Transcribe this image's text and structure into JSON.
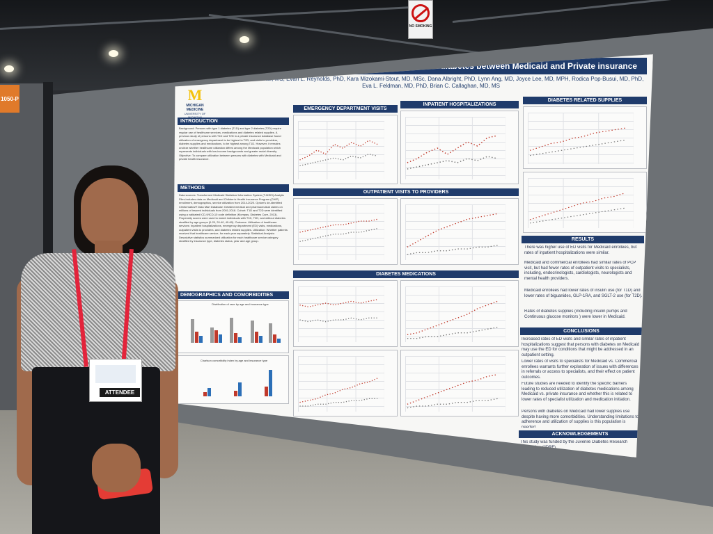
{
  "scene": {
    "sign_text": "NO SMOKING",
    "booth_number": "1050-P",
    "badge_text": "ATTENDEE"
  },
  "poster": {
    "title": "Comparing healthcare utilization among persons with diabetes between Medicaid and Private insurance",
    "authors": "Lavanya Muthukumar, MS, Evan L. Reynolds, PhD, Kara Mizokami-Stout, MD, MSc, Dana Albright, PhD, Lynn Ang, MD, Joyce Lee, MD, MPH, Rodica Pop-Busui, MD, PhD, Eva L. Feldman, MD, PhD, Brian C. Callaghan, MD, MS",
    "logo": {
      "letter": "M",
      "line1": "MICHIGAN MEDICINE",
      "line2": "UNIVERSITY OF MICHIGAN"
    },
    "sections": {
      "introduction": "INTRODUCTION",
      "methods": "METHODS",
      "demographics": "DEMOGRAPHICS AND COMORBIDITIES",
      "ed_visits": "EMERGENCY DEPARTMENT VISITS",
      "inpatient": "INPATIENT HOSPITALIZATIONS",
      "supplies": "DIABETES RELATED SUPPLIES",
      "outpatient": "OUTPATIENT VISITS TO PROVIDERS",
      "medications": "DIABETES MEDICATIONS",
      "results": "RESULTS",
      "conclusions": "CONCLUSIONS",
      "acknowledgements": "ACKNOWLEDGEMENTS"
    },
    "intro_text": "Background: Persons with type 1 diabetes (T1D) and type 2 diabetes (T2D) require regular use of healthcare services, medications and diabetes related supplies. A previous study of persons with T1D and T2D in a private insurance database found utilization of emergency department to be highest in T2D, and visits to providers, diabetes supplies and medications, to be highest among T1D. However, it remains unclear whether healthcare utilization differs among the Medicaid population which represents individuals with low-income backgrounds and greater racial diversity. Objective: To compare utilization between persons with diabetes with Medicaid and private health insurance.",
    "methods_text": "Data sources: Transformed Medicaid Statistical Information System (T-MSIS) Analytic Files includes data on Medicaid and Children's Health Insurance Program (CHIP) enrollment, demographics, service utilization from 2014-2020. Optum's de-identified Clinformatics® Data Mart Database: Detailed medical and pharmaceutical claims on millions of insured individuals from 2001-2018. Cohort: T1D and T2D were identified using a validated ICD-9/ICD-10 code definition (Klompas, Diabetes Care, 2013). Propensity scores were used to match individuals with T1D, T2D, and without diabetes stratified by age groups (0-20, 20-40, 40-60). Outcome: Utilization of healthcare services: Inpatient hospitalizations, emergency department (ED) visits, medications, outpatient visits to providers, and diabetes related supplies. Utilization: Whether patients received that healthcare service, for each year separately. Statistical Analysis: Descriptive statistics summarized utilization for each healthcare service category stratified by insurance type, diabetes status, year and age group.",
    "demo_chart_titles": {
      "race": "Distribution of race by age and insurance type",
      "charlson": "Charlson comorbidity index by age and insurance type"
    },
    "results": [
      "There was higher use of ED visits for Medicaid enrollees, but rates of inpatient hospitalizations were similar.",
      "Medicaid and commercial enrollees had similar rates of PCP visit, but had fewer rates of outpatient visits to specialists, including, endocrinologists, cardiologists, neurologists and mental health providers.",
      "Medicaid enrollees had lower rates of insulin use (for T1D) and lower rates of biguanides, GLP-1RA, and SGLT-2 use (for T2D).",
      "Rates of diabetes supplies (including insulin pumps and Continuous glucose monitors ) were lower in Medicaid."
    ],
    "conclusions": [
      "Increased rates of ED visits and similar rates of inpatient hospitalizations suggest that persons with diabetes on Medicaid may use the ED for conditions that might be addressed in an outpatient setting.",
      "Lower rates of visits to specialists for Medicaid vs. Commercial enrollees warrants further exploration of issues with differences in referrals or access to specialists, and their effect on patient outcomes.",
      "Future studies are needed to identify the specific barriers leading to reduced utilization of diabetes medications among Medicaid vs. private insurance and whether this is related to lower rates of specialist utilization and medication initiation.",
      "Persons with diabetes on Medicaid had lower supplies use despite having more comorbidities. Understanding limitations to adherence and utilization of supplies is this population is needed."
    ],
    "acknowledgements_text": "This study was funded by the Juvenile Diabetes Research Foundation (JDRF).",
    "colors": {
      "header": "#1f3b6b",
      "gold": "#f4c20d",
      "series_red": "#c0392b",
      "series_blue": "#2c6fb7",
      "series_gray": "#888888"
    }
  }
}
